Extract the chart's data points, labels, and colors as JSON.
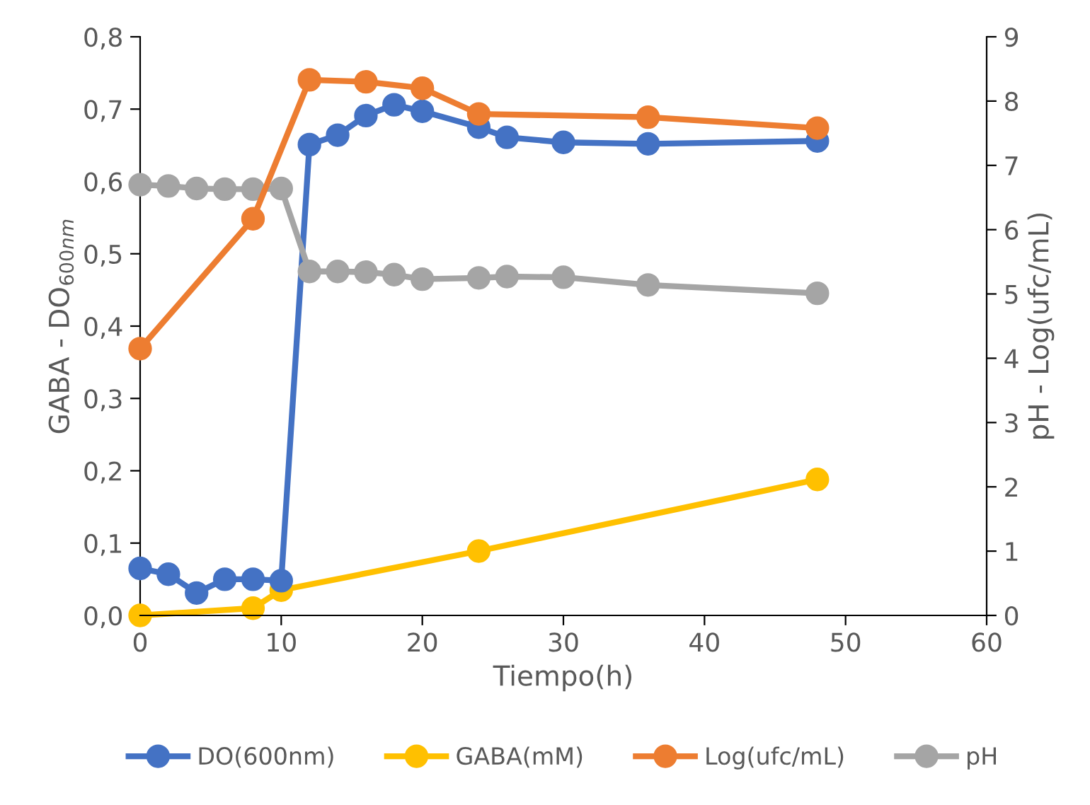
{
  "chart_data": {
    "type": "line",
    "xlabel": "Tiempo(h)",
    "ylabel": "GABA - DO$_{600nm}$",
    "y2label": "pH - Log(ufc/mL)",
    "xlim": [
      0,
      60
    ],
    "xticks": [
      0,
      10,
      20,
      30,
      40,
      50,
      60
    ],
    "ylim": [
      0,
      0.8
    ],
    "yticks": [
      {
        "value": 0,
        "label": "0,0"
      },
      {
        "value": 0.1,
        "label": "0,1"
      },
      {
        "value": 0.2,
        "label": "0,2"
      },
      {
        "value": 0.3,
        "label": "0,3"
      },
      {
        "value": 0.4,
        "label": "0,4"
      },
      {
        "value": 0.5,
        "label": "0,5"
      },
      {
        "value": 0.6,
        "label": "0,6"
      },
      {
        "value": 0.7,
        "label": "0,7"
      },
      {
        "value": 0.8,
        "label": "0,8"
      }
    ],
    "y2lim": [
      0,
      9
    ],
    "y2ticks": [
      0,
      1,
      2,
      3,
      4,
      5,
      6,
      7,
      8,
      9
    ],
    "grid": false,
    "legend": "bottom",
    "marker": "circle",
    "line_style": "solid",
    "series": [
      {
        "name": "DO(600nm)",
        "color": "#4472c4",
        "x": [
          0,
          2,
          4,
          6,
          8,
          10,
          12,
          14,
          16,
          18,
          20,
          24,
          26,
          30,
          36,
          48
        ],
        "values": [
          0.065,
          0.057,
          0.031,
          0.05,
          0.05,
          0.048,
          0.651,
          0.664,
          0.691,
          0.706,
          0.697,
          0.675,
          0.661,
          0.654,
          0.652,
          0.656
        ]
      },
      {
        "name": "GABA(mM)",
        "color": "#ffc000",
        "x": [
          0,
          8,
          10,
          24,
          48
        ],
        "values": [
          0,
          0.01,
          0.035,
          0.089,
          0.188
        ]
      },
      {
        "name": "Log(ufc/mL)",
        "color": "#ed7d31",
        "axis": "y2",
        "x": [
          0,
          8,
          12,
          16,
          20,
          24,
          36,
          48
        ],
        "values": [
          4.15,
          6.17,
          8.33,
          8.3,
          8.2,
          7.8,
          7.75,
          7.58
        ]
      },
      {
        "name": "pH",
        "color": "#a5a5a5",
        "axis": "y2",
        "x": [
          0,
          2,
          4,
          6,
          8,
          10,
          12,
          14,
          16,
          18,
          20,
          24,
          26,
          30,
          36,
          48
        ],
        "values": [
          6.7,
          6.68,
          6.64,
          6.63,
          6.63,
          6.64,
          5.35,
          5.35,
          5.34,
          5.3,
          5.23,
          5.25,
          5.27,
          5.26,
          5.14,
          5.01
        ]
      }
    ]
  }
}
